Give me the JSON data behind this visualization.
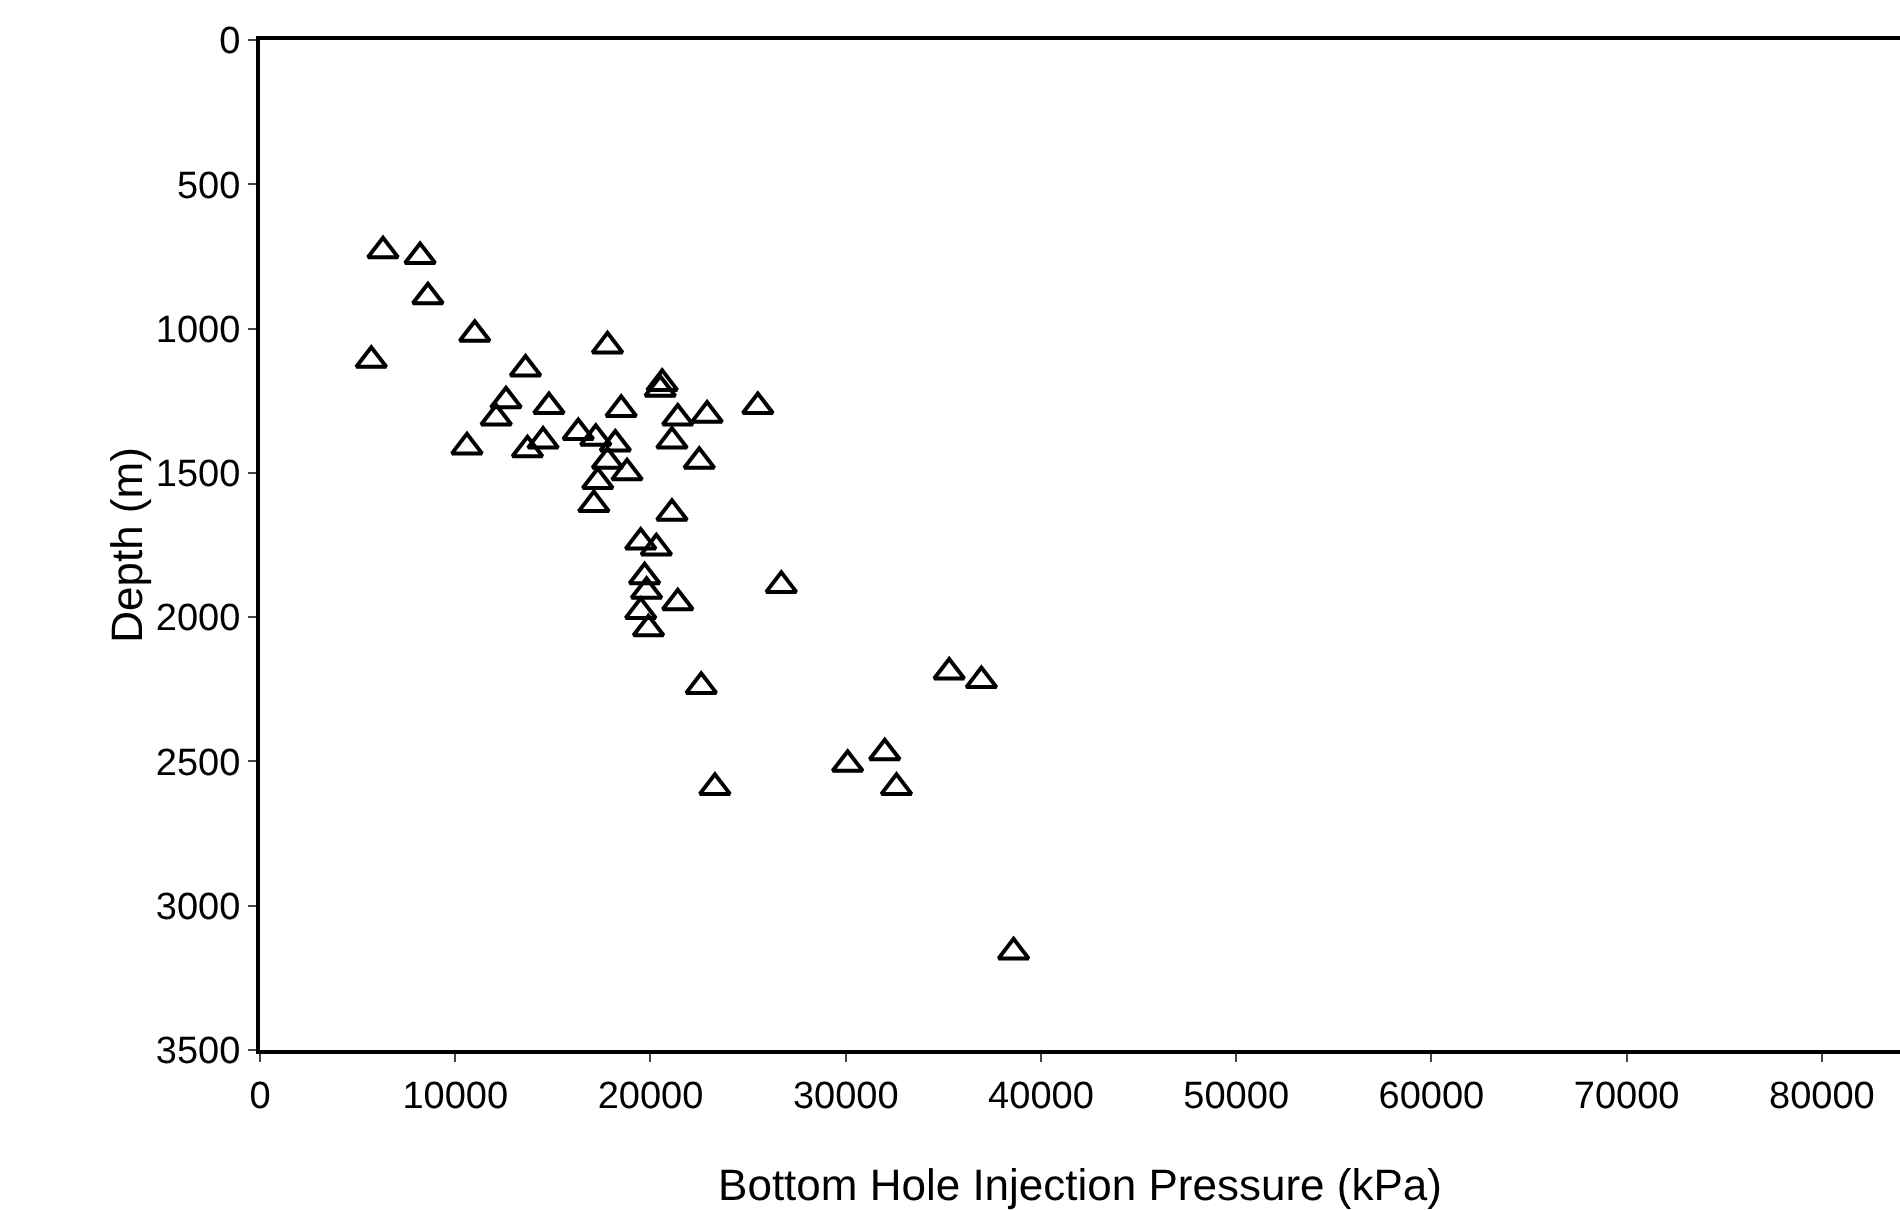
{
  "chart_data": {
    "type": "scatter",
    "xlabel": "Bottom Hole Injection Pressure (kPa)",
    "ylabel": "Depth (m)",
    "x": [
      6300,
      8200,
      8600,
      5700,
      11000,
      13600,
      17800,
      12600,
      12100,
      14800,
      10600,
      13700,
      14500,
      16300,
      17200,
      18500,
      17300,
      17100,
      17800,
      18200,
      18800,
      20500,
      20600,
      21400,
      22900,
      25500,
      21100,
      22500,
      21100,
      19500,
      20300,
      19700,
      19800,
      21400,
      19500,
      19900,
      26700,
      22600,
      35300,
      36950,
      30100,
      32000,
      32600,
      23300,
      38600
    ],
    "values": [
      730,
      750,
      890,
      1110,
      1020,
      1140,
      1060,
      1250,
      1310,
      1270,
      1410,
      1420,
      1390,
      1360,
      1380,
      1280,
      1530,
      1610,
      1460,
      1400,
      1500,
      1210,
      1190,
      1310,
      1300,
      1270,
      1390,
      1460,
      1640,
      1740,
      1760,
      1860,
      1910,
      1950,
      1980,
      2040,
      1890,
      2240,
      2190,
      2220,
      2510,
      2470,
      2590,
      2590,
      3160
    ],
    "color": "#000000",
    "marker": "triangle",
    "xlim": [
      0,
      84000
    ],
    "xticks": [
      0,
      10000,
      20000,
      30000,
      40000,
      50000,
      60000,
      70000,
      80000
    ],
    "ylim": [
      3500,
      0
    ],
    "yticks": [
      0,
      500,
      1000,
      1500,
      2000,
      2500,
      3000,
      3500
    ],
    "grid": false
  }
}
